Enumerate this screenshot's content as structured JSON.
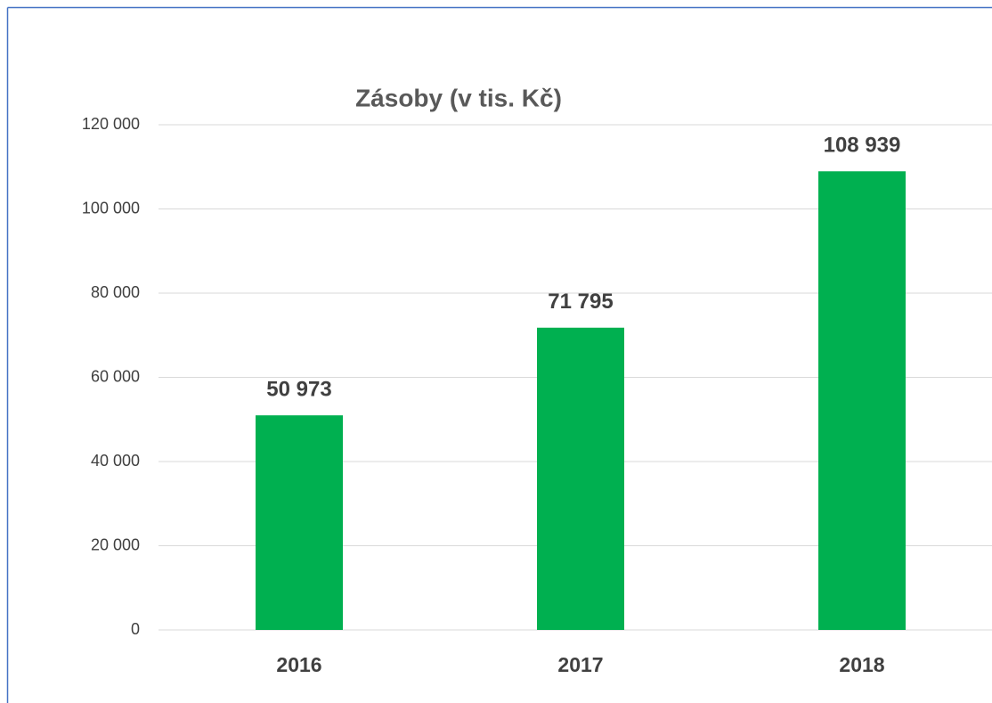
{
  "chart_data": {
    "type": "bar",
    "title": "Zásoby (v tis. Kč)",
    "categories": [
      "2016",
      "2017",
      "2018"
    ],
    "values": [
      50973,
      71795,
      108939
    ],
    "value_labels": [
      "50 973",
      "71 795",
      "108 939"
    ],
    "color": "#00b050",
    "ylim": [
      0,
      120000
    ],
    "yticks": [
      0,
      {
        "value": 20000,
        "label": "20 000"
      },
      {
        "value": 40000,
        "label": "40 000"
      },
      {
        "value": 60000,
        "label": "60 000"
      },
      {
        "value": 80000,
        "label": "80 000"
      },
      {
        "value": 100000,
        "label": "100 000"
      },
      {
        "value": 120000,
        "label": "120 000"
      }
    ],
    "grid": true
  }
}
